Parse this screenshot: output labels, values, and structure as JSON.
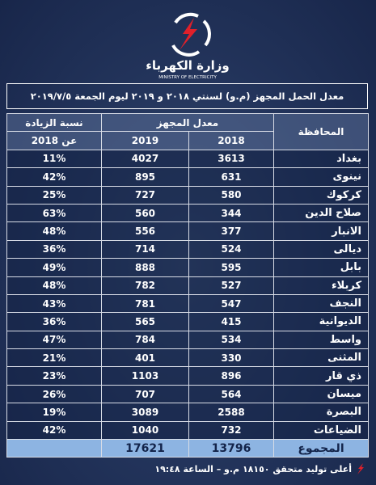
{
  "header": {
    "ministry_ar": "وزارة الكهرباء",
    "ministry_en": "MINISTRY OF ELECTRICITY"
  },
  "title": "معدل الحمل المجهز (م.و) لسنتي ٢٠١٨ و ٢٠١٩ ليوم الجمعة ٢٠١٩/٧/٥",
  "table": {
    "columns": {
      "increase": "نسبة الزيادة",
      "increase_sub": "عن 2018",
      "avg": "معدل المجهز",
      "y2019": "2019",
      "y2018": "2018",
      "province": "المحافظة"
    },
    "rows": [
      [
        "بغداد",
        "3613",
        "4027",
        "11%"
      ],
      [
        "نينوى",
        "631",
        "895",
        "42%"
      ],
      [
        "كركوك",
        "580",
        "727",
        "25%"
      ],
      [
        "صلاح الدين",
        "344",
        "560",
        "63%"
      ],
      [
        "الانبار",
        "377",
        "556",
        "48%"
      ],
      [
        "ديالى",
        "524",
        "714",
        "36%"
      ],
      [
        "بابل",
        "595",
        "888",
        "49%"
      ],
      [
        "كربلاء",
        "527",
        "782",
        "48%"
      ],
      [
        "النجف",
        "547",
        "781",
        "43%"
      ],
      [
        "الديوانية",
        "415",
        "565",
        "36%"
      ],
      [
        "واسط",
        "534",
        "784",
        "47%"
      ],
      [
        "المثنى",
        "330",
        "401",
        "21%"
      ],
      [
        "ذي قار",
        "896",
        "1103",
        "23%"
      ],
      [
        "ميسان",
        "564",
        "707",
        "26%"
      ],
      [
        "البصرة",
        "2588",
        "3089",
        "19%"
      ],
      [
        "الضياعات",
        "732",
        "1040",
        "42%"
      ]
    ],
    "total": {
      "label": "المجموع",
      "y2018": "13796",
      "y2019": "17621"
    }
  },
  "footer": "أعلى توليد متحقق ١٨١٥٠ م.و – الساعة ١٩:٤٨"
}
